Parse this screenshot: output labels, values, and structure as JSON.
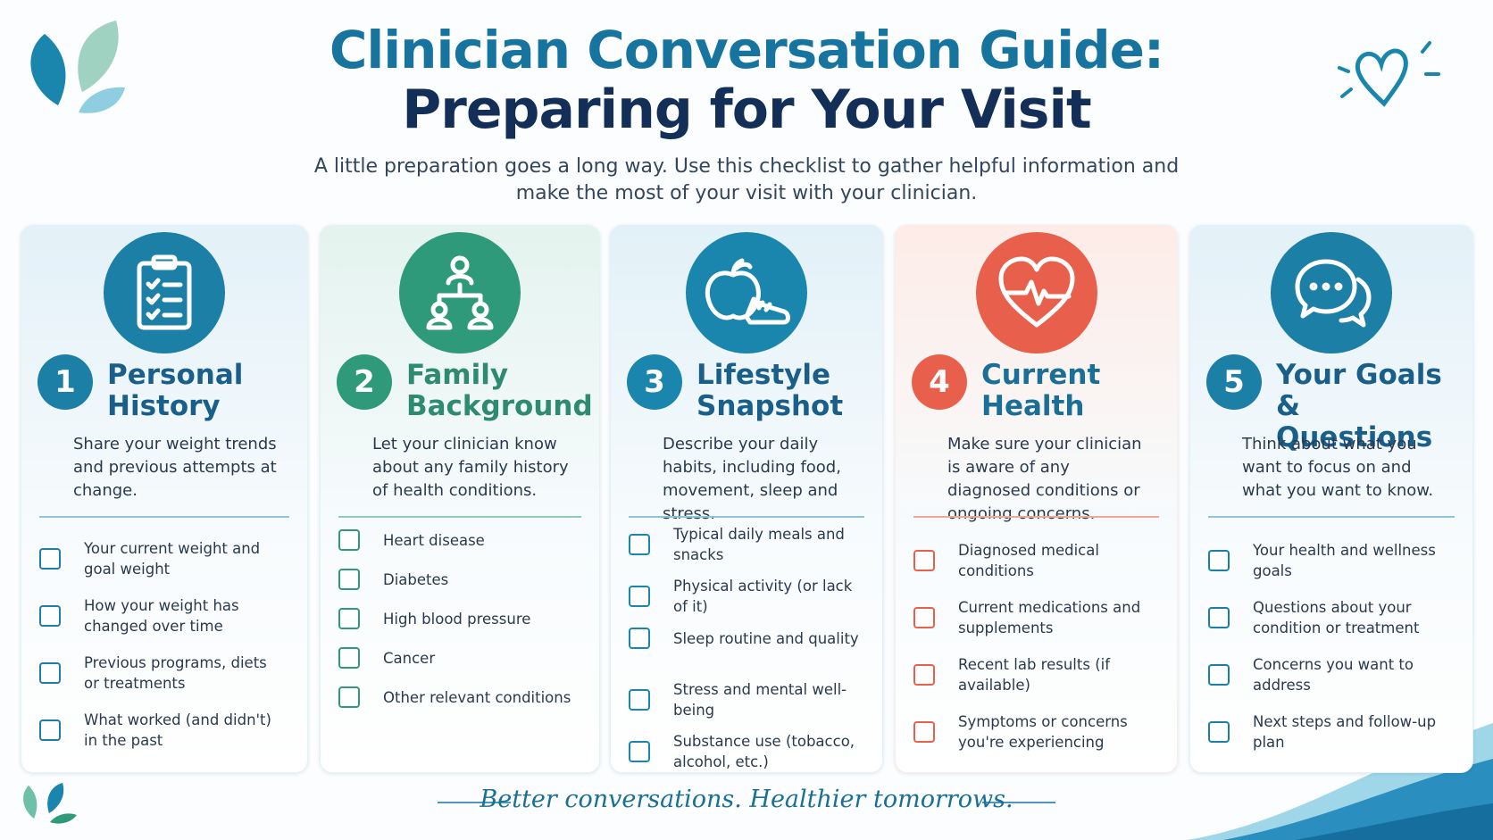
{
  "header": {
    "title_line1": "Clinician Conversation Guide:",
    "title_line2": "Preparing for Your Visit",
    "subtitle": "A little preparation goes a long way. Use this checklist to gather helpful information and make the most of your visit with your clinician."
  },
  "cards": [
    {
      "number": "1",
      "title": "Personal History",
      "description": "Share your weight trends and previous attempts at change.",
      "items": [
        "Your current weight and goal weight",
        "How your weight has changed over time",
        "Previous programs, diets or treatments",
        "What worked (and didn't) in the past"
      ]
    },
    {
      "number": "2",
      "title": "Family Background",
      "description": "Let your clinician know about any family history of health conditions.",
      "items": [
        "Heart disease",
        "Diabetes",
        "High blood pressure",
        "Cancer",
        "Other relevant conditions"
      ]
    },
    {
      "number": "3",
      "title": "Lifestyle Snapshot",
      "description": "Describe your daily habits, including food, movement, sleep and stress.",
      "items": [
        "Typical daily meals and snacks",
        "Physical activity (or lack of it)",
        "Sleep routine and quality",
        "Stress and mental well-being",
        "Substance use (tobacco, alcohol, etc.)"
      ]
    },
    {
      "number": "4",
      "title": "Current Health",
      "description": "Make sure your clinician is aware of any diagnosed conditions or ongoing concerns.",
      "items": [
        "Diagnosed medical conditions",
        "Current medications and supplements",
        "Recent lab results (if available)",
        "Symptoms or concerns you're experiencing"
      ]
    },
    {
      "number": "5",
      "title": "Your Goals & Questions",
      "description": "Think about what you want to focus on and what you want to know.",
      "items": [
        "Your health and wellness goals",
        "Questions about your condition or treatment",
        "Concerns you want to address",
        "Next steps and follow-up plan"
      ]
    }
  ],
  "footer": {
    "tagline": "Better conversations. Healthier tomorrows."
  }
}
